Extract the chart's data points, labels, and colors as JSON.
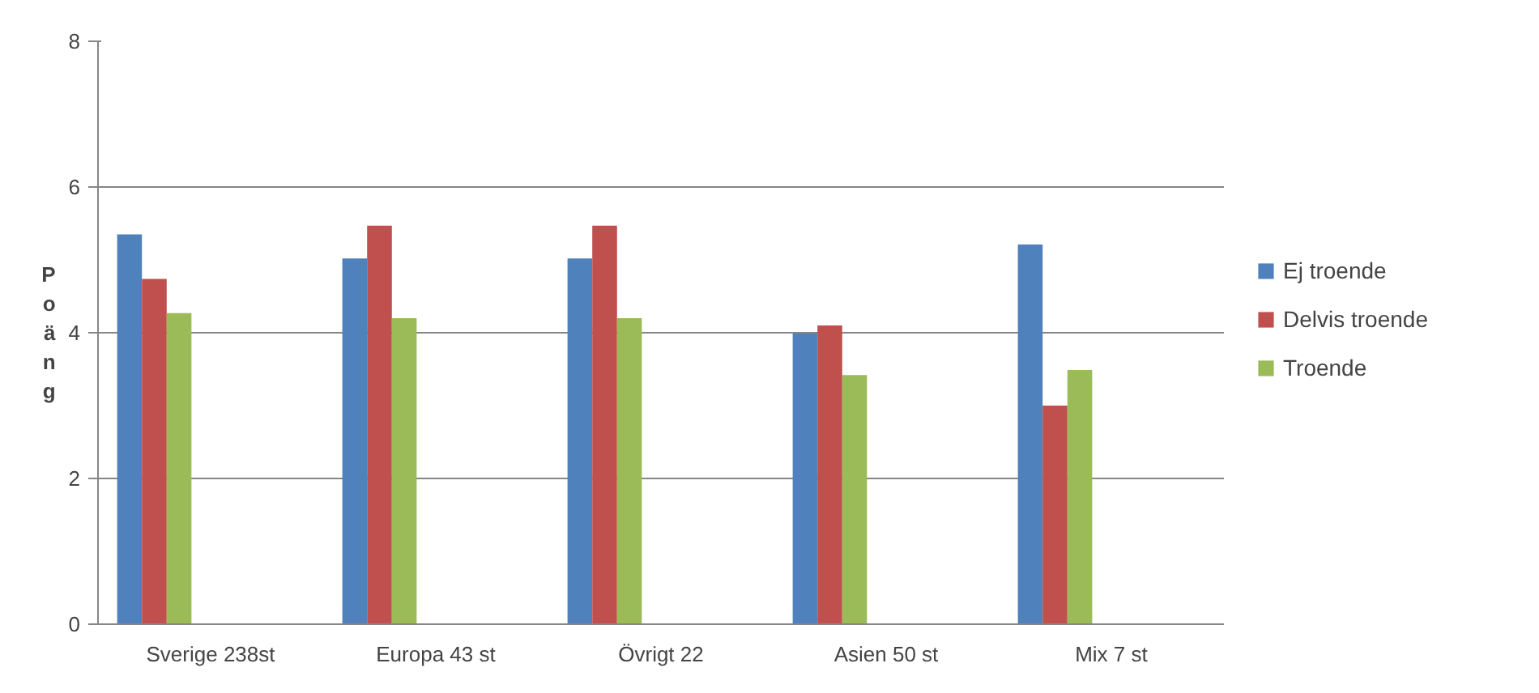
{
  "chart_data": {
    "type": "bar",
    "ylabel": "Poäng",
    "categories": [
      "Sverige 238st",
      "Europa 43 st",
      "Övrigt 22",
      "Asien 50 st",
      "Mix 7 st"
    ],
    "series": [
      {
        "name": "Ej troende",
        "color": "#4f81bd",
        "values": [
          5.35,
          5.02,
          5.02,
          3.99,
          5.21
        ]
      },
      {
        "name": "Delvis troende",
        "color": "#c0504d",
        "values": [
          4.74,
          5.47,
          5.47,
          4.1,
          3.0
        ]
      },
      {
        "name": "Troende",
        "color": "#9bbb59",
        "values": [
          4.27,
          4.2,
          4.2,
          3.42,
          3.49
        ]
      }
    ],
    "ylim": [
      0,
      8
    ],
    "yticks": [
      0,
      2,
      4,
      6,
      8
    ],
    "grid": "y",
    "legend": "right"
  }
}
